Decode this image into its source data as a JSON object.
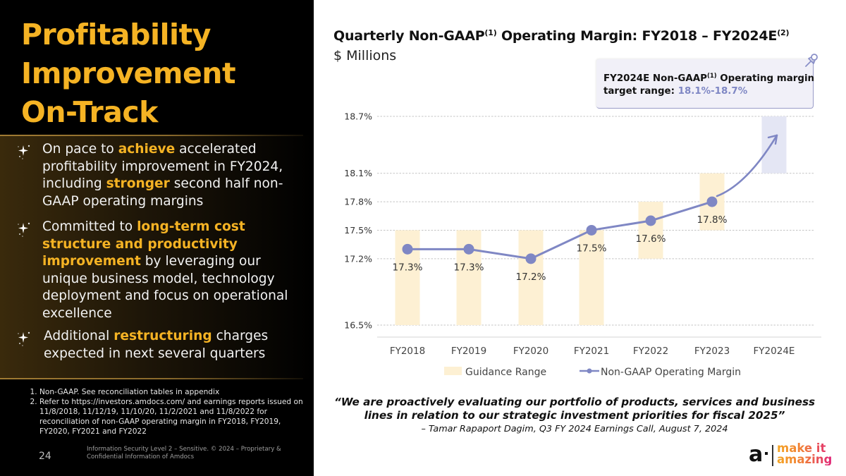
{
  "slide": {
    "title_lines": [
      "Profitability",
      "Improvement",
      "On-Track"
    ],
    "page_number": "24",
    "confidential": "Information Security Level 2 – Sensitive. © 2024 – Proprietary & Confidential Information of Amdocs",
    "accent_color": "#F5B324"
  },
  "bullets": [
    {
      "icon": "sparkle-icon",
      "parts": [
        {
          "t": "On pace to ",
          "hl": false
        },
        {
          "t": "achieve",
          "hl": true
        },
        {
          "t": " accelerated profitability improvement in FY2024, including ",
          "hl": false
        },
        {
          "t": "stronger",
          "hl": true
        },
        {
          "t": " second half non-GAAP operating margins",
          "hl": false
        }
      ]
    },
    {
      "icon": "sparkle-icon",
      "parts": [
        {
          "t": "Committed to ",
          "hl": false
        },
        {
          "t": "long-term cost structure and productivity improvement",
          "hl": true
        },
        {
          "t": " by leveraging our unique business model, technology deployment and focus on operational excellence",
          "hl": false
        }
      ]
    },
    {
      "icon": "sparkle-icon",
      "parts": [
        {
          "t": "Additional ",
          "hl": false
        },
        {
          "t": "restructuring",
          "hl": true
        },
        {
          "t": " charges expected in next several quarters",
          "hl": false
        }
      ]
    }
  ],
  "footnotes": [
    "Non-GAAP. See reconciliation tables in appendix",
    "Refer to https://investors.amdocs.com/ and earnings reports issued on 11/8/2018, 11/12/19, 11/10/20, 11/2/2021 and 11/8/2022 for reconciliation of non-GAAP operating margin in FY2018, FY2019, FY2020, FY2021 and FY2022"
  ],
  "chart_header": {
    "title_main": "Quarterly Non-GAAP",
    "title_sup1": "(1)",
    "title_rest": " Operating Margin: FY2018 – FY2024E",
    "title_sup2": "(2)",
    "subtitle": "$ Millions"
  },
  "callout": {
    "line1_a": "FY2024E Non-GAAP",
    "line1_sup": "(1)",
    "line1_b": " Operating margin",
    "line2_label": "target range: ",
    "line2_range": "18.1%-18.7%",
    "icon": "pushpin-icon"
  },
  "chart_data": {
    "type": "bar+line",
    "title": "Quarterly Non-GAAP(1) Operating Margin: FY2018 – FY2024E(2)",
    "subtitle": "$ Millions",
    "categories": [
      "FY2018",
      "FY2019",
      "FY2020",
      "FY2021",
      "FY2022",
      "FY2023",
      "FY2024E"
    ],
    "yticks": [
      16.5,
      17.2,
      17.5,
      17.8,
      18.1,
      18.7
    ],
    "ytick_labels": [
      "16.5%",
      "17.2%",
      "17.5%",
      "17.8%",
      "18.1%",
      "18.7%"
    ],
    "ylim": [
      16.5,
      18.7
    ],
    "grid": true,
    "grid_style": "dotted",
    "series": [
      {
        "name": "Guidance Range",
        "type": "floating-bar",
        "color": "#FDF0D3",
        "target_color": "#E4E6F4",
        "ranges": [
          [
            16.5,
            17.5
          ],
          [
            16.5,
            17.5
          ],
          [
            16.5,
            17.5
          ],
          [
            16.5,
            17.5
          ],
          [
            17.2,
            17.8
          ],
          [
            17.5,
            18.1
          ],
          [
            18.1,
            18.7
          ]
        ]
      },
      {
        "name": "Non-GAAP Operating Margin",
        "type": "line",
        "color": "#7F87C4",
        "values": [
          17.3,
          17.3,
          17.2,
          17.5,
          17.6,
          17.8,
          null
        ],
        "labels": [
          "17.3%",
          "17.3%",
          "17.2%",
          "17.5%",
          "17.6%",
          "17.8%",
          ""
        ],
        "trend_arrow_to": 18.5
      }
    ],
    "legend": [
      "Guidance Range",
      "Non-GAAP Operating Margin"
    ],
    "legend_position": "bottom"
  },
  "quote": {
    "text": "“We are proactively evaluating our portfolio of products, services and business lines in relation to our strategic investment priorities for fiscal 2025”",
    "attribution": "– Tamar Rapaport Dagim, Q3 FY 2024 Earnings Call, August 7, 2024"
  },
  "logo": {
    "mark": "a",
    "tagline_1": "make it",
    "tagline_2": "amazing"
  }
}
